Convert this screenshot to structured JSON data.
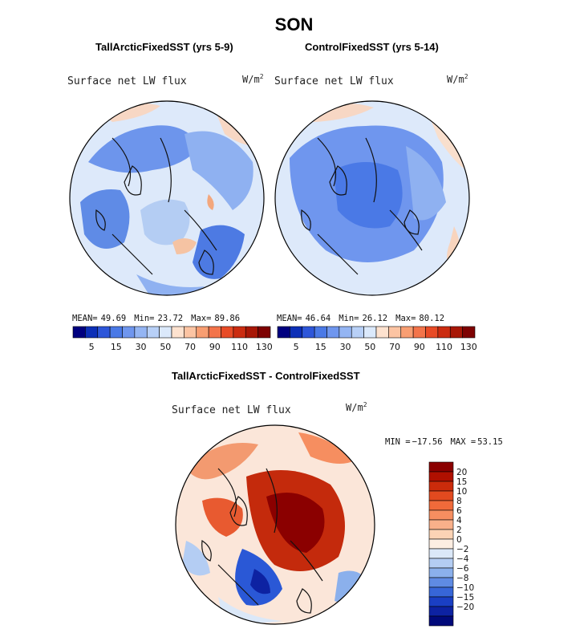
{
  "figure": {
    "title": "SON",
    "panels": {
      "left": {
        "title": "TallArcticFixedSST (yrs 5-9)",
        "variable": "Surface net LW flux",
        "units": "W/m",
        "units_exp": "2"
      },
      "right": {
        "title": "ControlFixedSST (yrs 5-14)",
        "variable": "Surface net LW flux",
        "units": "W/m",
        "units_exp": "2"
      },
      "diff": {
        "title": "TallArcticFixedSST - ControlFixedSST",
        "variable": "Surface net LW flux",
        "units": "W/m",
        "units_exp": "2"
      }
    }
  },
  "chart_data": [
    {
      "type": "heatmap",
      "projection": "north-polar-stereographic",
      "title": "TallArcticFixedSST (yrs 5-9)",
      "variable": "Surface net LW flux",
      "units": "W/m2",
      "stats": {
        "mean_label": "MEAN=",
        "mean": "49.69",
        "min_label": "Min=",
        "min": "23.72",
        "max_label": "Max=",
        "max": "89.86"
      },
      "colorbar": {
        "orientation": "horizontal",
        "tick_labels": [
          "5",
          "15",
          "30",
          "50",
          "70",
          "90",
          "110",
          "130"
        ],
        "colors": [
          "#00007f",
          "#0c2fb7",
          "#2d56d9",
          "#4a79e6",
          "#6f96ee",
          "#94b5f3",
          "#b8d0f7",
          "#dbe9fb",
          "#fde2cf",
          "#fcc4a3",
          "#f89e72",
          "#f3744a",
          "#e84b26",
          "#cb2c10",
          "#a81706",
          "#7e0202"
        ]
      },
      "field_pattern": [
        "mostly-light-blue",
        "blue-patches-over-continents",
        "warm-peach-patches-ocean"
      ]
    },
    {
      "type": "heatmap",
      "projection": "north-polar-stereographic",
      "title": "ControlFixedSST (yrs 5-14)",
      "variable": "Surface net LW flux",
      "units": "W/m2",
      "stats": {
        "mean_label": "MEAN=",
        "mean": "46.64",
        "min_label": "Min=",
        "min": "26.12",
        "max_label": "Max=",
        "max": "80.12"
      },
      "colorbar": {
        "orientation": "horizontal",
        "tick_labels": [
          "5",
          "15",
          "30",
          "50",
          "70",
          "90",
          "110",
          "130"
        ],
        "colors": [
          "#00007f",
          "#0c2fb7",
          "#2d56d9",
          "#4a79e6",
          "#6f96ee",
          "#94b5f3",
          "#b8d0f7",
          "#dbe9fb",
          "#fde2cf",
          "#fcc4a3",
          "#f89e72",
          "#f3744a",
          "#e84b26",
          "#cb2c10",
          "#a81706",
          "#7e0202"
        ]
      },
      "field_pattern": [
        "broad-blue-arctic",
        "light-blue-periphery",
        "peach-subtropical-edges"
      ]
    },
    {
      "type": "heatmap",
      "projection": "north-polar-stereographic",
      "title": "TallArcticFixedSST - ControlFixedSST",
      "variable": "Surface net LW flux",
      "units": "W/m2",
      "stats": {
        "min_label": "MIN = ",
        "min": "−17.56",
        "max_label": "MAX =  ",
        "max": "53.15"
      },
      "colorbar": {
        "orientation": "vertical",
        "tick_labels": [
          "20",
          "15",
          "10",
          "8",
          "6",
          "4",
          "2",
          "0",
          "−2",
          "−4",
          "−6",
          "−8",
          "−10",
          "−15",
          "−20"
        ],
        "colors": [
          "#8b0000",
          "#b01000",
          "#cb2b0b",
          "#e24a1f",
          "#f06a3a",
          "#f68e60",
          "#f9b08a",
          "#fcd3b5",
          "#fdeee2",
          "#dbe8f8",
          "#b4cdf3",
          "#8bb0ec",
          "#5f8be3",
          "#3766d8",
          "#1a3fc4",
          "#0d22a2",
          "#00097a"
        ]
      },
      "field_pattern": [
        "strong-positive-arctic-ocean",
        "negative-central-asia",
        "mixed-positive-atlantic"
      ]
    }
  ]
}
